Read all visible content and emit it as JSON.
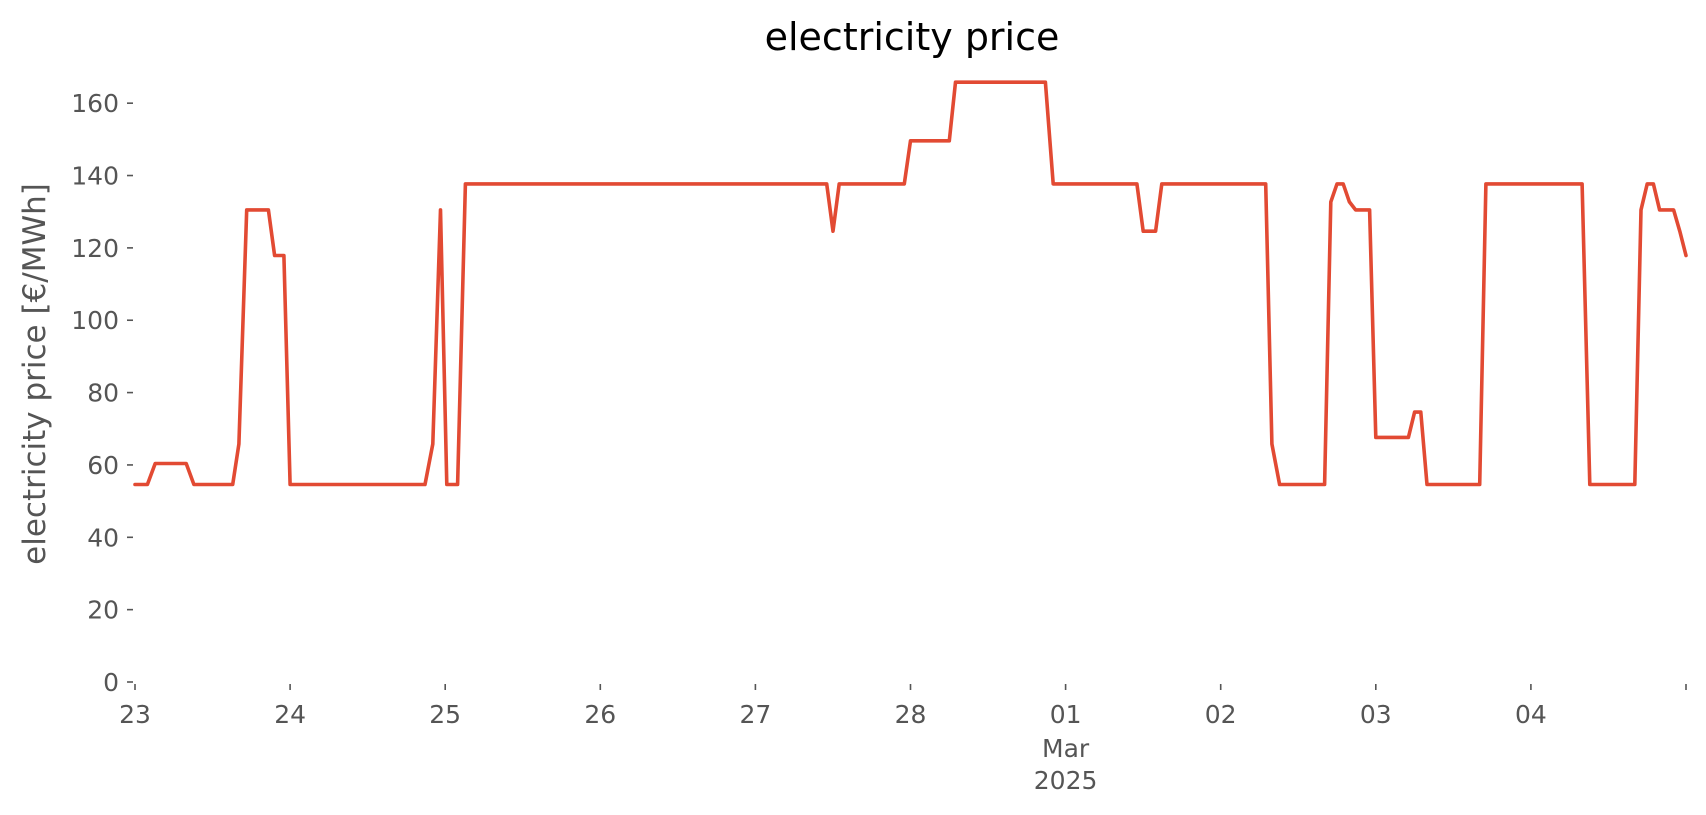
{
  "chart_data": {
    "type": "line",
    "title": "electricity price",
    "xlabel": "",
    "ylabel": "electricity price [€/MWh]",
    "ylim": [
      0,
      170
    ],
    "xlim_days": [
      0,
      10
    ],
    "yticks": [
      0,
      20,
      40,
      60,
      80,
      100,
      120,
      140,
      160
    ],
    "xticks": [
      {
        "day": 0,
        "label": "23"
      },
      {
        "day": 1,
        "label": "24"
      },
      {
        "day": 2,
        "label": "25"
      },
      {
        "day": 3,
        "label": "26"
      },
      {
        "day": 4,
        "label": "27"
      },
      {
        "day": 5,
        "label": "28"
      },
      {
        "day": 6,
        "label": "01",
        "sublabels": [
          "Mar",
          "2025"
        ]
      },
      {
        "day": 7,
        "label": "02"
      },
      {
        "day": 8,
        "label": "03"
      },
      {
        "day": 9,
        "label": "04"
      },
      {
        "day": 10,
        "label": ""
      }
    ],
    "grid": false,
    "legend": "none",
    "series": [
      {
        "color": "#E24A33",
        "x": [
          0,
          0.08,
          0.13,
          0.33,
          0.38,
          0.63,
          0.67,
          0.72,
          0.86,
          0.9,
          0.96,
          1.0,
          1.87,
          1.92,
          1.97,
          2.01,
          2.08,
          2.13,
          4.46,
          4.5,
          4.54,
          4.96,
          5.0,
          5.25,
          5.29,
          5.87,
          5.92,
          6.46,
          6.5,
          6.58,
          6.62,
          7.29,
          7.33,
          7.38,
          7.67,
          7.71,
          7.75,
          7.79,
          7.83,
          7.87,
          7.96,
          8.0,
          8.21,
          8.25,
          8.29,
          8.33,
          8.67,
          8.71,
          9.33,
          9.38,
          9.67,
          9.71,
          9.75,
          9.79,
          9.83,
          9.92,
          9.96,
          10.0
        ],
        "y": [
          54.6,
          54.6,
          60.4,
          60.4,
          54.6,
          54.6,
          65.8,
          130.5,
          130.5,
          117.9,
          117.9,
          54.6,
          54.6,
          65.8,
          130.5,
          54.6,
          54.6,
          137.7,
          137.7,
          124.6,
          137.7,
          137.7,
          149.6,
          149.6,
          165.8,
          165.8,
          137.7,
          137.7,
          124.6,
          124.6,
          137.7,
          137.7,
          65.8,
          54.6,
          54.6,
          132.7,
          137.7,
          137.7,
          132.7,
          130.5,
          130.5,
          67.6,
          67.6,
          74.6,
          74.6,
          54.6,
          54.6,
          137.7,
          137.7,
          54.6,
          54.6,
          130.5,
          137.7,
          137.7,
          130.5,
          130.5,
          124.6,
          117.9
        ]
      }
    ]
  }
}
